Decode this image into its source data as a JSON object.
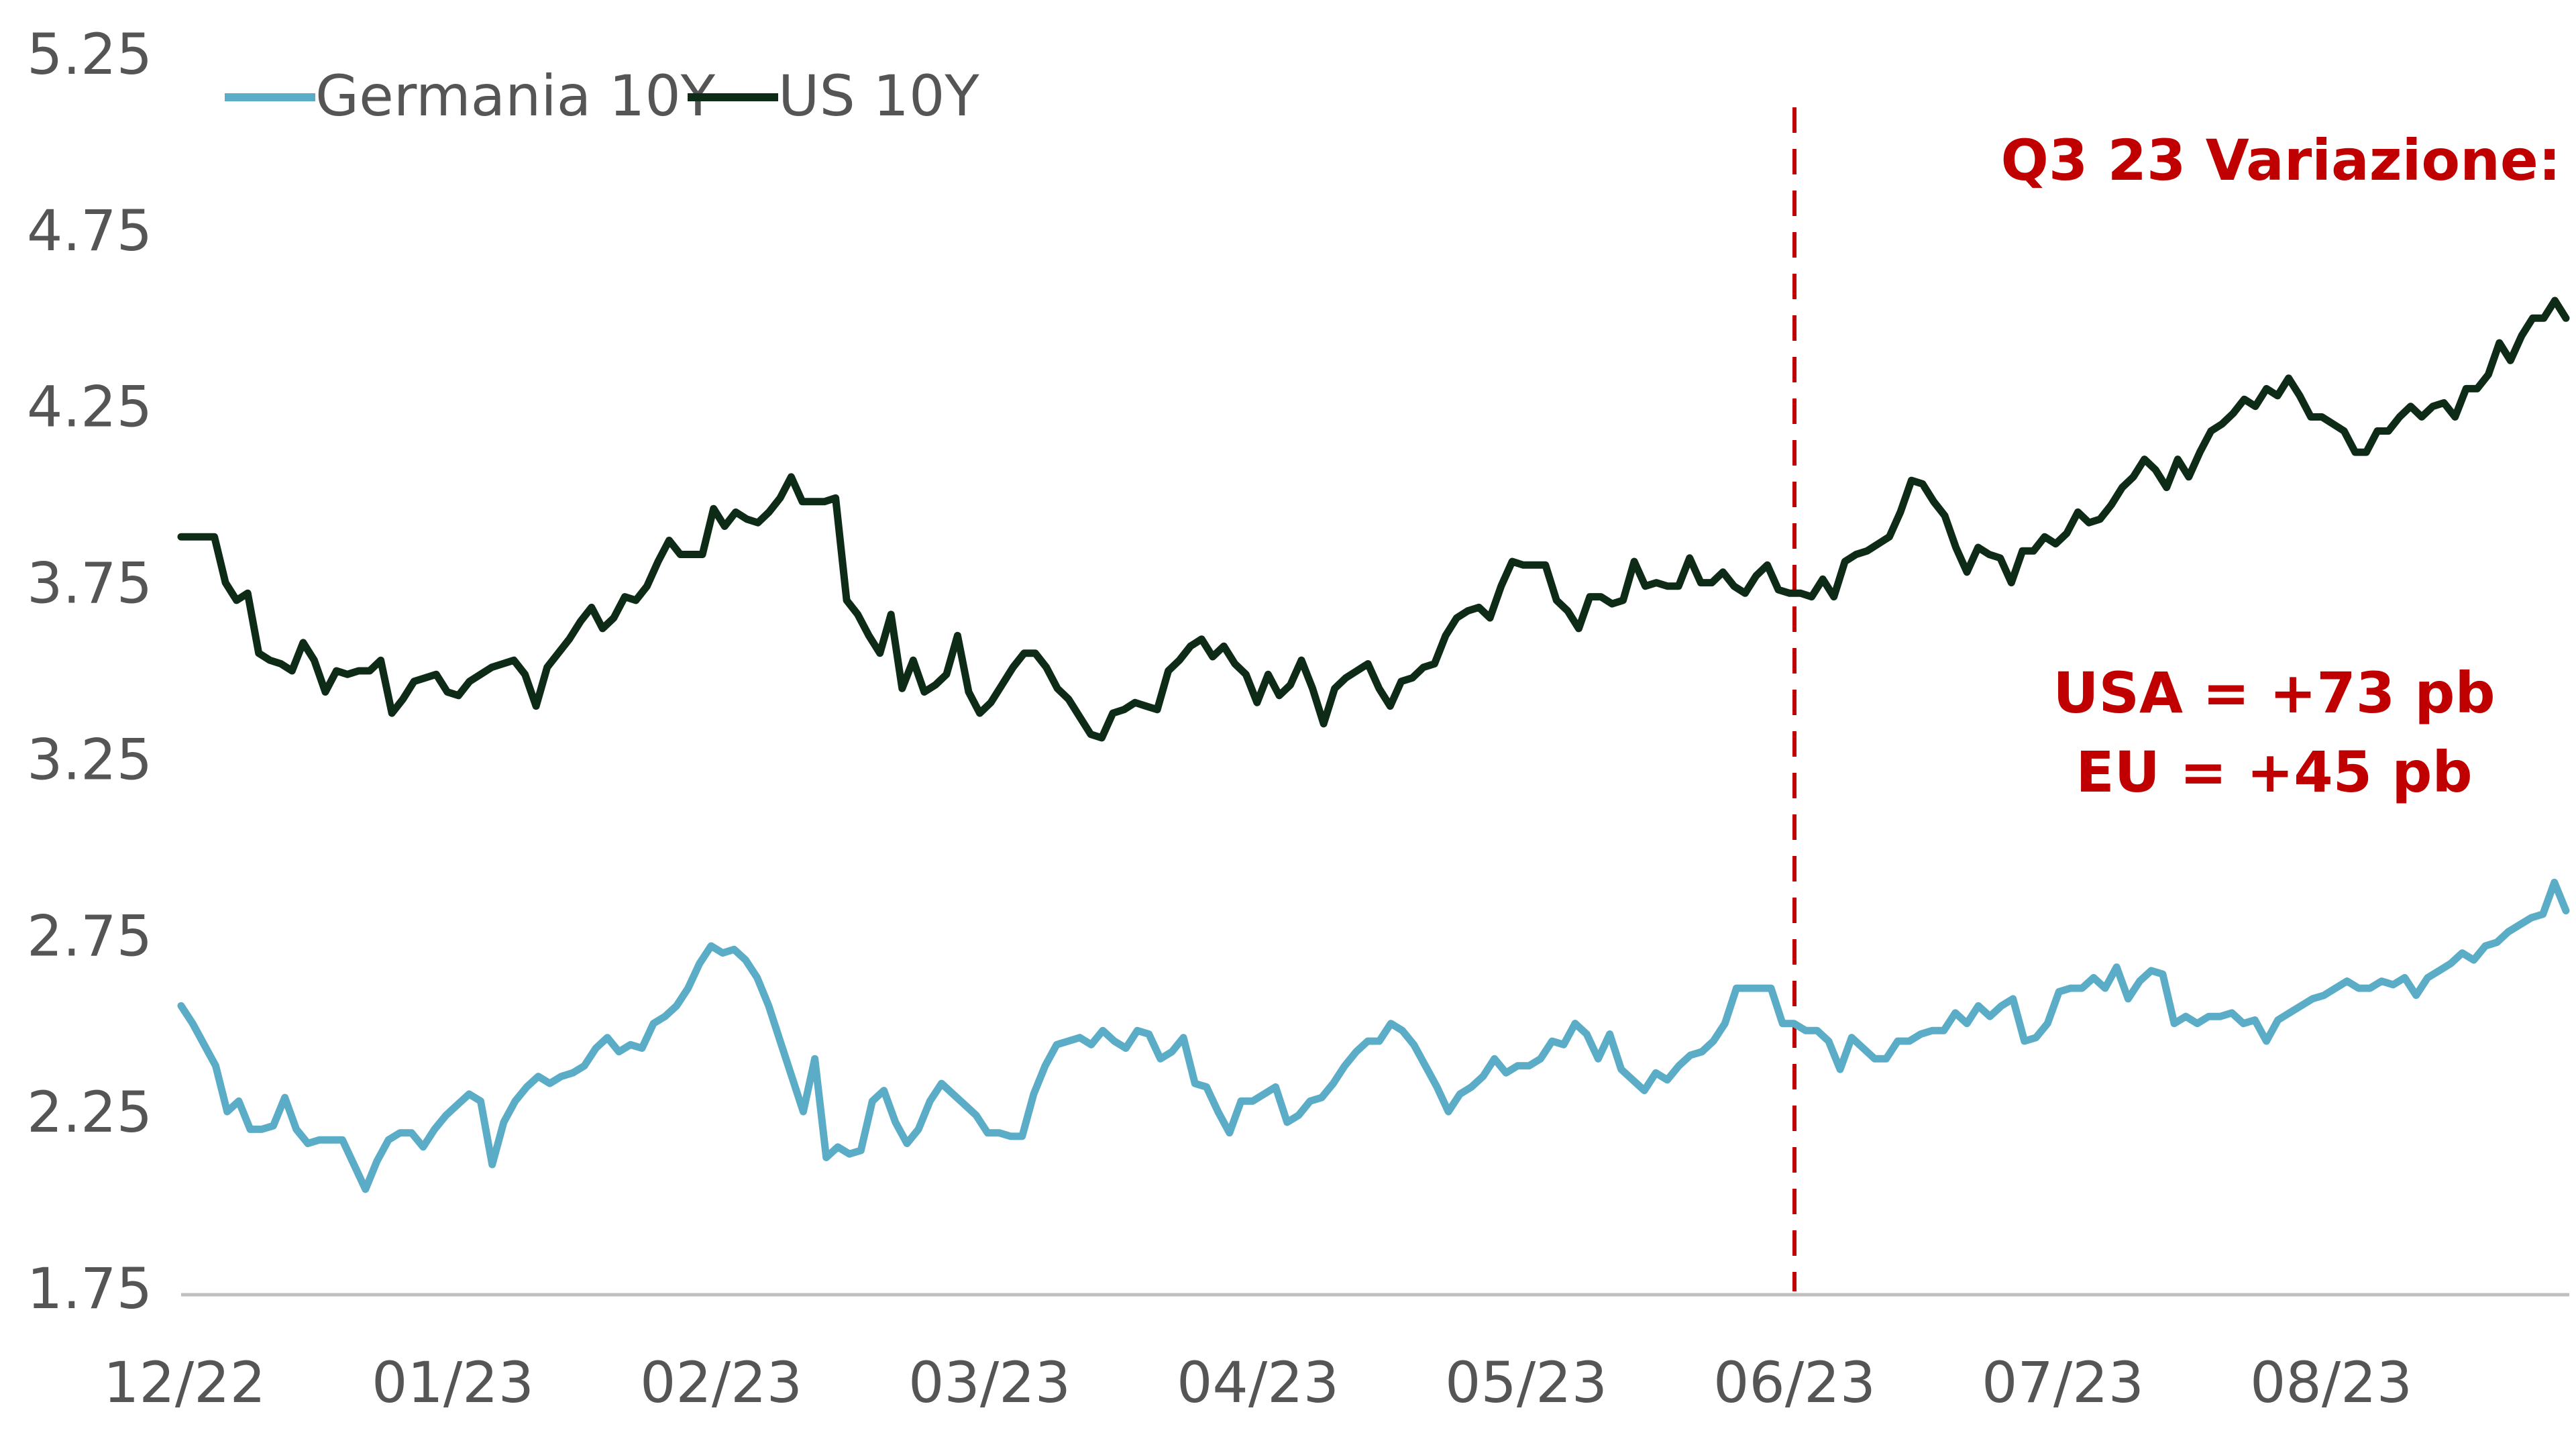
{
  "chart_data": {
    "type": "line",
    "y_ticks": [
      "5.25",
      "4.75",
      "4.25",
      "3.75",
      "3.25",
      "2.75",
      "2.25",
      "1.75"
    ],
    "ylim": [
      1.75,
      5.25
    ],
    "x_ticks": [
      "12/22",
      "01/23",
      "02/23",
      "03/23",
      "04/23",
      "05/23",
      "06/23",
      "07/23",
      "08/23"
    ],
    "grid": false,
    "legend_position": "top-left",
    "colors": {
      "germania": "#5bacc6",
      "us": "#0d2b16",
      "marker": "#c00000",
      "axis": "#bfbfbf"
    },
    "marker_tick": "06/23",
    "annotations": {
      "header": "Q3 23 Variazione:",
      "line1": "USA = +73 pb",
      "line2": "EU = +45 pb"
    },
    "series": [
      {
        "name": "Germania 10Y",
        "color": "#5bacc6",
        "values": [
          2.55,
          2.5,
          2.44,
          2.38,
          2.25,
          2.28,
          2.2,
          2.2,
          2.21,
          2.29,
          2.2,
          2.16,
          2.17,
          2.17,
          2.17,
          2.1,
          2.03,
          2.11,
          2.17,
          2.19,
          2.19,
          2.15,
          2.2,
          2.24,
          2.27,
          2.3,
          2.28,
          2.1,
          2.22,
          2.28,
          2.32,
          2.35,
          2.33,
          2.35,
          2.36,
          2.38,
          2.43,
          2.46,
          2.42,
          2.44,
          2.43,
          2.5,
          2.52,
          2.55,
          2.6,
          2.67,
          2.72,
          2.7,
          2.71,
          2.68,
          2.63,
          2.55,
          2.45,
          2.35,
          2.25,
          2.4,
          2.12,
          2.15,
          2.13,
          2.14,
          2.28,
          2.31,
          2.22,
          2.16,
          2.2,
          2.28,
          2.33,
          2.3,
          2.27,
          2.24,
          2.19,
          2.19,
          2.18,
          2.18,
          2.3,
          2.38,
          2.44,
          2.45,
          2.46,
          2.44,
          2.48,
          2.45,
          2.43,
          2.48,
          2.47,
          2.4,
          2.42,
          2.46,
          2.33,
          2.32,
          2.25,
          2.19,
          2.28,
          2.28,
          2.3,
          2.32,
          2.22,
          2.24,
          2.28,
          2.29,
          2.33,
          2.38,
          2.42,
          2.45,
          2.45,
          2.5,
          2.48,
          2.44,
          2.38,
          2.32,
          2.25,
          2.3,
          2.32,
          2.35,
          2.4,
          2.36,
          2.38,
          2.38,
          2.4,
          2.45,
          2.44,
          2.5,
          2.47,
          2.4,
          2.47,
          2.37,
          2.34,
          2.31,
          2.36,
          2.34,
          2.38,
          2.41,
          2.42,
          2.45,
          2.5,
          2.6,
          2.6,
          2.6,
          2.6,
          2.5,
          2.5,
          2.48,
          2.48,
          2.45,
          2.37,
          2.46,
          2.43,
          2.4,
          2.4,
          2.45,
          2.45,
          2.47,
          2.48,
          2.48,
          2.53,
          2.5,
          2.55,
          2.52,
          2.55,
          2.57,
          2.45,
          2.46,
          2.5,
          2.59,
          2.6,
          2.6,
          2.63,
          2.6,
          2.66,
          2.57,
          2.62,
          2.65,
          2.64,
          2.5,
          2.52,
          2.5,
          2.52,
          2.52,
          2.53,
          2.5,
          2.51,
          2.45,
          2.51,
          2.53,
          2.55,
          2.57,
          2.58,
          2.6,
          2.62,
          2.6,
          2.6,
          2.62,
          2.61,
          2.63,
          2.58,
          2.63,
          2.65,
          2.67,
          2.7,
          2.68,
          2.72,
          2.73,
          2.76,
          2.78,
          2.8,
          2.81,
          2.9,
          2.82
        ]
      },
      {
        "name": "US 10Y",
        "color": "#0d2b16",
        "values": [
          3.88,
          3.88,
          3.88,
          3.88,
          3.75,
          3.7,
          3.72,
          3.55,
          3.53,
          3.52,
          3.5,
          3.58,
          3.53,
          3.44,
          3.5,
          3.49,
          3.5,
          3.5,
          3.53,
          3.38,
          3.42,
          3.47,
          3.48,
          3.49,
          3.44,
          3.43,
          3.47,
          3.49,
          3.51,
          3.52,
          3.53,
          3.49,
          3.4,
          3.51,
          3.55,
          3.59,
          3.64,
          3.68,
          3.62,
          3.65,
          3.71,
          3.7,
          3.74,
          3.81,
          3.87,
          3.83,
          3.83,
          3.83,
          3.96,
          3.91,
          3.95,
          3.93,
          3.92,
          3.95,
          3.99,
          4.05,
          3.98,
          3.98,
          3.98,
          3.99,
          3.7,
          3.66,
          3.6,
          3.55,
          3.66,
          3.45,
          3.53,
          3.44,
          3.46,
          3.49,
          3.6,
          3.44,
          3.38,
          3.41,
          3.46,
          3.51,
          3.55,
          3.55,
          3.51,
          3.45,
          3.42,
          3.37,
          3.32,
          3.31,
          3.38,
          3.39,
          3.41,
          3.4,
          3.39,
          3.5,
          3.53,
          3.57,
          3.59,
          3.54,
          3.57,
          3.52,
          3.49,
          3.41,
          3.49,
          3.43,
          3.46,
          3.53,
          3.45,
          3.35,
          3.45,
          3.48,
          3.5,
          3.52,
          3.45,
          3.4,
          3.47,
          3.48,
          3.51,
          3.52,
          3.6,
          3.65,
          3.67,
          3.68,
          3.65,
          3.74,
          3.81,
          3.8,
          3.8,
          3.8,
          3.7,
          3.67,
          3.62,
          3.71,
          3.71,
          3.69,
          3.7,
          3.81,
          3.74,
          3.75,
          3.74,
          3.74,
          3.82,
          3.75,
          3.75,
          3.78,
          3.74,
          3.72,
          3.77,
          3.8,
          3.73,
          3.72,
          3.72,
          3.71,
          3.76,
          3.71,
          3.81,
          3.83,
          3.84,
          3.86,
          3.88,
          3.95,
          4.04,
          4.03,
          3.98,
          3.94,
          3.85,
          3.78,
          3.85,
          3.83,
          3.82,
          3.75,
          3.84,
          3.84,
          3.88,
          3.86,
          3.89,
          3.95,
          3.92,
          3.93,
          3.97,
          4.02,
          4.05,
          4.1,
          4.07,
          4.02,
          4.1,
          4.05,
          4.12,
          4.18,
          4.2,
          4.23,
          4.27,
          4.25,
          4.3,
          4.28,
          4.33,
          4.28,
          4.22,
          4.22,
          4.2,
          4.18,
          4.12,
          4.12,
          4.18,
          4.18,
          4.22,
          4.25,
          4.22,
          4.25,
          4.26,
          4.22,
          4.3,
          4.3,
          4.34,
          4.43,
          4.38,
          4.45,
          4.5,
          4.5,
          4.55,
          4.5
        ]
      }
    ]
  }
}
